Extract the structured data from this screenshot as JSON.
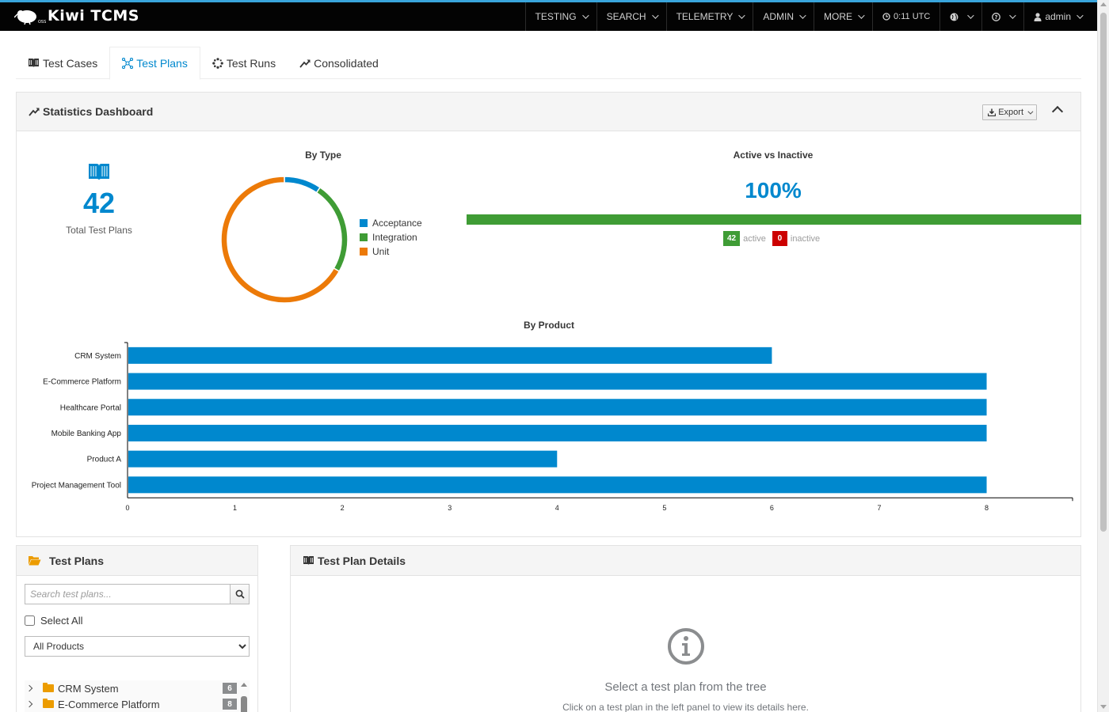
{
  "brand": {
    "name": "Kiwi TCMS"
  },
  "nav": {
    "items": [
      {
        "label": "TESTING"
      },
      {
        "label": "SEARCH"
      },
      {
        "label": "TELEMETRY"
      },
      {
        "label": "ADMIN"
      },
      {
        "label": "MORE"
      }
    ],
    "clock": "0:11 UTC",
    "user": "admin"
  },
  "tabs": [
    {
      "label": "Test Cases",
      "icon": "book-icon"
    },
    {
      "label": "Test Plans",
      "icon": "network-icon",
      "active": true
    },
    {
      "label": "Test Runs",
      "icon": "spinner-icon"
    },
    {
      "label": "Consolidated",
      "icon": "trend-icon"
    }
  ],
  "stats": {
    "title": "Statistics Dashboard",
    "export_label": "Export",
    "total_value": "42",
    "total_label": "Total Test Plans",
    "by_type_title": "By Type",
    "active_title": "Active vs Inactive",
    "active_pct_text": "100%",
    "active_fraction": 1.0,
    "active_count": "42",
    "active_word": "active",
    "inactive_count": "0",
    "inactive_word": "inactive",
    "by_product_title": "By Product"
  },
  "colors": {
    "accent": "#0088ce",
    "green": "#3f9c35",
    "red": "#cc0000",
    "orange": "#ec7a08",
    "topbar": "#030303"
  },
  "chart_data": [
    {
      "type": "pie",
      "title": "By Type",
      "categories": [
        "Acceptance",
        "Integration",
        "Unit"
      ],
      "values": [
        4,
        10,
        28
      ],
      "colors": [
        "#0088ce",
        "#3f9c35",
        "#ec7a08"
      ],
      "legend": "right"
    },
    {
      "type": "bar",
      "orientation": "horizontal",
      "title": "By Product",
      "categories": [
        "CRM System",
        "E-Commerce Platform",
        "Healthcare Portal",
        "Mobile Banking App",
        "Product A",
        "Project Management Tool"
      ],
      "values": [
        6,
        8,
        8,
        8,
        4,
        8
      ],
      "xlim": [
        0,
        8.8
      ],
      "xticks": [
        0,
        1,
        2,
        3,
        4,
        5,
        6,
        7,
        8
      ],
      "color": "#0088ce",
      "grid": false
    }
  ],
  "tree": {
    "title": "Test Plans",
    "search_placeholder": "Search test plans...",
    "select_all_label": "Select All",
    "product_filter": "All Products",
    "items": [
      {
        "label": "CRM System",
        "count": "6"
      },
      {
        "label": "E-Commerce Platform",
        "count": "8"
      }
    ]
  },
  "details": {
    "title": "Test Plan Details",
    "empty_title": "Select a test plan from the tree",
    "empty_subtitle": "Click on a test plan in the left panel to view its details here."
  }
}
